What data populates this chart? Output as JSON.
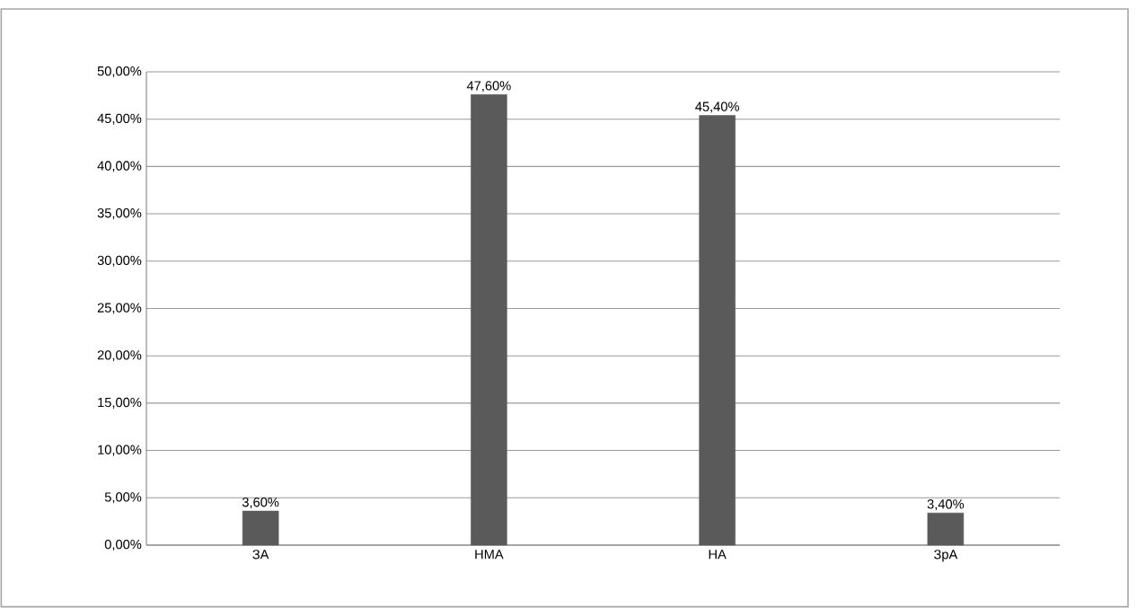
{
  "chart_data": {
    "type": "bar",
    "categories": [
      "ЗА",
      "НМА",
      "НА",
      "ЗрА"
    ],
    "values": [
      3.6,
      47.6,
      45.4,
      3.4
    ],
    "value_labels": [
      "3,60%",
      "47,60%",
      "45,40%",
      "3,40%"
    ],
    "color": "#5a5a5a",
    "ylim": [
      0,
      50
    ],
    "yticks": [
      {
        "value": 0,
        "label": "0,00%"
      },
      {
        "value": 5,
        "label": "5,00%"
      },
      {
        "value": 10,
        "label": "10,00%"
      },
      {
        "value": 15,
        "label": "15,00%"
      },
      {
        "value": 20,
        "label": "20,00%"
      },
      {
        "value": 25,
        "label": "25,00%"
      },
      {
        "value": 30,
        "label": "30,00%"
      },
      {
        "value": 35,
        "label": "35,00%"
      },
      {
        "value": 40,
        "label": "40,00%"
      },
      {
        "value": 45,
        "label": "45,00%"
      },
      {
        "value": 50,
        "label": "50,00%"
      }
    ],
    "grid": "y"
  }
}
